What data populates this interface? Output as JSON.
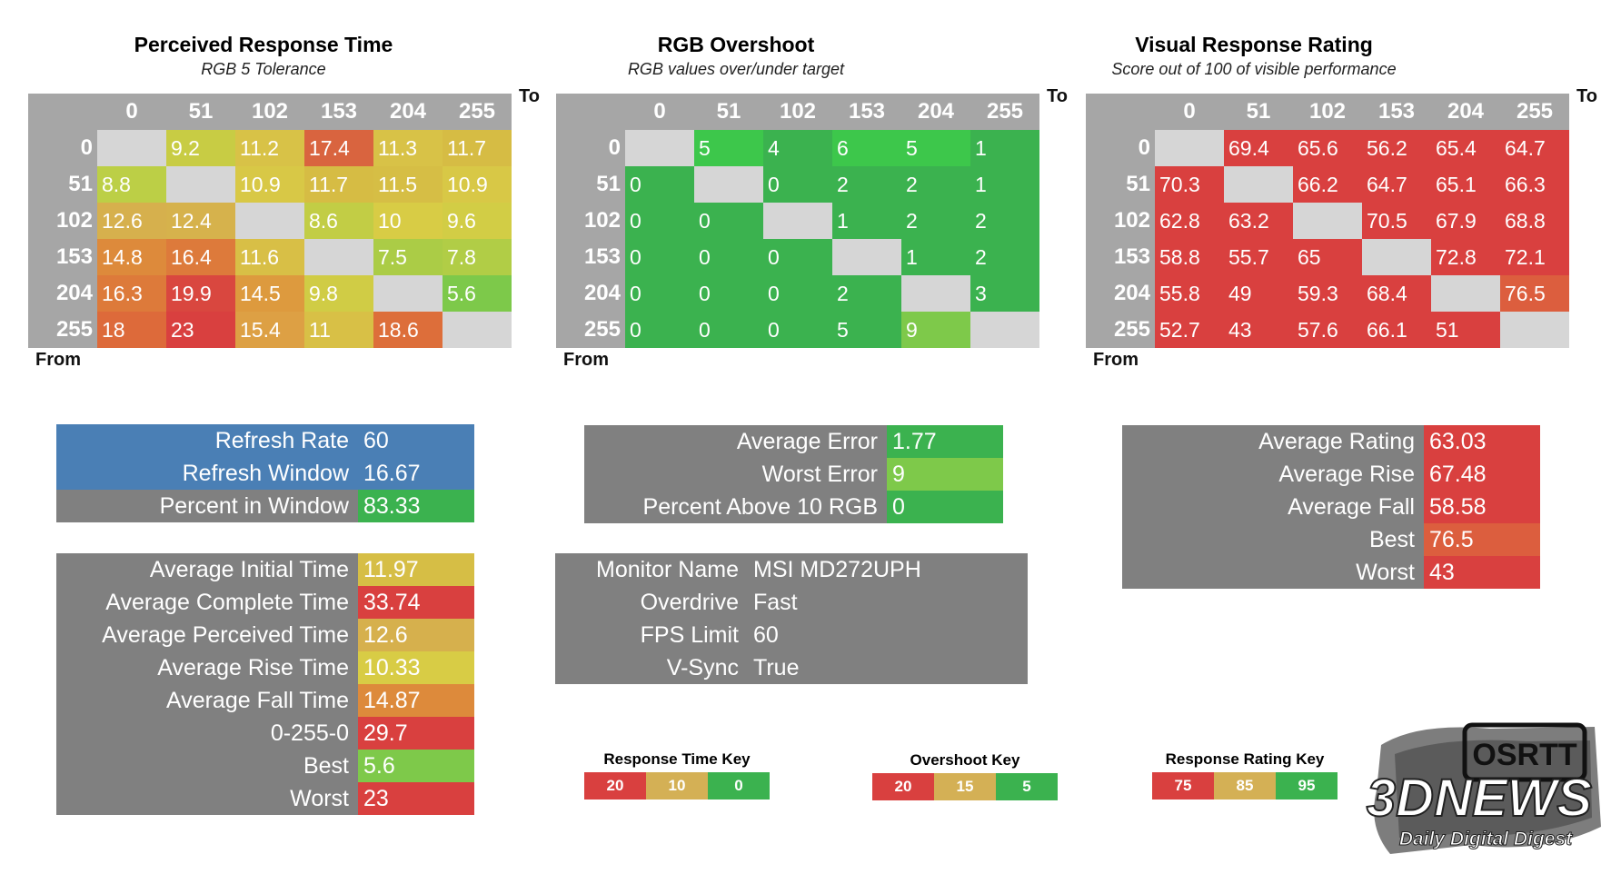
{
  "axis_labels": {
    "to": "To",
    "from": "From"
  },
  "colors": {
    "red": "#d9403f",
    "orange": "#dd7f3a",
    "amber": "#d4b055",
    "gold": "#d8b33e",
    "yellow": "#d9cf45",
    "lime": "#b6ce46",
    "lightgreen": "#7ec94a",
    "green": "#3bb24f",
    "brightgreen": "#3dc74b",
    "diag": "#d6d6d6",
    "header": "#a6a6a6",
    "label": "#808080",
    "blue": "#4a7fb5"
  },
  "chart_data": [
    {
      "type": "heatmap",
      "title": "Perceived Response Time",
      "subtitle": "RGB 5 Tolerance",
      "xlabel": "To",
      "ylabel": "From",
      "categories": [
        "0",
        "51",
        "102",
        "153",
        "204",
        "255"
      ],
      "values": [
        [
          null,
          "9.2",
          "11.2",
          "17.4",
          "11.3",
          "11.7"
        ],
        [
          "8.8",
          null,
          "10.9",
          "11.7",
          "11.5",
          "10.9"
        ],
        [
          "12.6",
          "12.4",
          null,
          "8.6",
          "10",
          "9.6"
        ],
        [
          "14.8",
          "16.4",
          "11.6",
          null,
          "7.5",
          "7.8"
        ],
        [
          "16.3",
          "19.9",
          "14.5",
          "9.8",
          null,
          "5.6"
        ],
        [
          "18",
          "23",
          "15.4",
          "11",
          "18.6",
          null
        ]
      ],
      "cell_colors": [
        [
          "#d6d6d6",
          "#c8cc44",
          "#d8c247",
          "#d9643f",
          "#d8c247",
          "#d6bc44"
        ],
        [
          "#bccf46",
          "#d6d6d6",
          "#d8c846",
          "#d6bc44",
          "#d6be45",
          "#d8c846"
        ],
        [
          "#d6b04d",
          "#d6b24c",
          "#d6d6d6",
          "#c2cd45",
          "#d8cc45",
          "#d2cd45"
        ],
        [
          "#dd8a3b",
          "#dd7a3b",
          "#d8bf46",
          "#d6d6d6",
          "#abcc46",
          "#b1cd46"
        ],
        [
          "#dd7a3a",
          "#d9473f",
          "#dd9a3e",
          "#d0cc45",
          "#d6d6d6",
          "#7dc94a"
        ],
        [
          "#dd6a3a",
          "#d9403f",
          "#dda044",
          "#d8c046",
          "#dd6e3a",
          "#d6d6d6"
        ]
      ]
    },
    {
      "type": "heatmap",
      "title": "RGB Overshoot",
      "subtitle": "RGB values over/under target",
      "xlabel": "To",
      "ylabel": "From",
      "categories": [
        "0",
        "51",
        "102",
        "153",
        "204",
        "255"
      ],
      "values": [
        [
          null,
          "5",
          "4",
          "6",
          "5",
          "1"
        ],
        [
          "0",
          null,
          "0",
          "2",
          "2",
          "1"
        ],
        [
          "0",
          "0",
          null,
          "1",
          "2",
          "2"
        ],
        [
          "0",
          "0",
          "0",
          null,
          "1",
          "2"
        ],
        [
          "0",
          "0",
          "0",
          "2",
          null,
          "3"
        ],
        [
          "0",
          "0",
          "0",
          "5",
          "9",
          null
        ]
      ],
      "cell_colors": [
        [
          "#d6d6d6",
          "#3dc74b",
          "#3bb24f",
          "#3dc74b",
          "#3dc74b",
          "#3bb24f"
        ],
        [
          "#3bb24f",
          "#d6d6d6",
          "#3bb24f",
          "#3bb24f",
          "#3bb24f",
          "#3bb24f"
        ],
        [
          "#3bb24f",
          "#3bb24f",
          "#d6d6d6",
          "#3bb24f",
          "#3bb24f",
          "#3bb24f"
        ],
        [
          "#3bb24f",
          "#3bb24f",
          "#3bb24f",
          "#d6d6d6",
          "#3bb24f",
          "#3bb24f"
        ],
        [
          "#3bb24f",
          "#3bb24f",
          "#3bb24f",
          "#3bb24f",
          "#d6d6d6",
          "#3bb24f"
        ],
        [
          "#3bb24f",
          "#3bb24f",
          "#3bb24f",
          "#3bb24f",
          "#7ec94a",
          "#d6d6d6"
        ]
      ]
    },
    {
      "type": "heatmap",
      "title": "Visual Response Rating",
      "subtitle": "Score out of 100 of visible performance",
      "xlabel": "To",
      "ylabel": "From",
      "categories": [
        "0",
        "51",
        "102",
        "153",
        "204",
        "255"
      ],
      "values": [
        [
          null,
          "69.4",
          "65.6",
          "56.2",
          "65.4",
          "64.7"
        ],
        [
          "70.3",
          null,
          "66.2",
          "64.7",
          "65.1",
          "66.3"
        ],
        [
          "62.8",
          "63.2",
          null,
          "70.5",
          "67.9",
          "68.8"
        ],
        [
          "58.8",
          "55.7",
          "65",
          null,
          "72.8",
          "72.1"
        ],
        [
          "55.8",
          "49",
          "59.3",
          "68.4",
          null,
          "76.5"
        ],
        [
          "52.7",
          "43",
          "57.6",
          "66.1",
          "51",
          null
        ]
      ],
      "cell_colors": [
        [
          "#d6d6d6",
          "#d9403f",
          "#d9403f",
          "#d9403f",
          "#d9403f",
          "#d9403f"
        ],
        [
          "#d9403f",
          "#d6d6d6",
          "#d9403f",
          "#d9403f",
          "#d9403f",
          "#d9403f"
        ],
        [
          "#d9403f",
          "#d9403f",
          "#d6d6d6",
          "#d9403f",
          "#d9403f",
          "#d9403f"
        ],
        [
          "#d9403f",
          "#d9403f",
          "#d9403f",
          "#d6d6d6",
          "#d9403f",
          "#d9403f"
        ],
        [
          "#d9403f",
          "#d9403f",
          "#d9403f",
          "#d9403f",
          "#d6d6d6",
          "#dc5e3e"
        ],
        [
          "#d9403f",
          "#d9403f",
          "#d9403f",
          "#d9403f",
          "#d9403f",
          "#d6d6d6"
        ]
      ]
    }
  ],
  "refresh_box": [
    {
      "label": "Refresh Rate",
      "value": "60",
      "label_color": "#4a7fb5",
      "value_color": "#4a7fb5"
    },
    {
      "label": "Refresh Window",
      "value": "16.67",
      "label_color": "#4a7fb5",
      "value_color": "#4a7fb5"
    },
    {
      "label": "Percent in Window",
      "value": "83.33",
      "label_color": "#808080",
      "value_color": "#3bb24f"
    }
  ],
  "times_box": [
    {
      "label": "Average Initial Time",
      "value": "11.97",
      "value_color": "#d6be45"
    },
    {
      "label": "Average Complete Time",
      "value": "33.74",
      "value_color": "#d9403f"
    },
    {
      "label": "Average Perceived Time",
      "value": "12.6",
      "value_color": "#d6b04d"
    },
    {
      "label": "Average Rise Time",
      "value": "10.33",
      "value_color": "#d8cc45"
    },
    {
      "label": "Average Fall Time",
      "value": "14.87",
      "value_color": "#dd8a3b"
    },
    {
      "label": "0-255-0",
      "value": "29.7",
      "value_color": "#d9403f"
    },
    {
      "label": "Best",
      "value": "5.6",
      "value_color": "#7ec94a"
    },
    {
      "label": "Worst",
      "value": "23",
      "value_color": "#d9403f"
    }
  ],
  "overshoot_box": [
    {
      "label": "Average Error",
      "value": "1.77",
      "value_color": "#3bb24f"
    },
    {
      "label": "Worst Error",
      "value": "9",
      "value_color": "#7ec94a"
    },
    {
      "label": "Percent Above 10 RGB",
      "value": "0",
      "value_color": "#3bb24f"
    }
  ],
  "monitor_box": [
    {
      "label": "Monitor Name",
      "value": "MSI MD272UPH"
    },
    {
      "label": "Overdrive",
      "value": "Fast"
    },
    {
      "label": "FPS Limit",
      "value": "60"
    },
    {
      "label": "V-Sync",
      "value": "True"
    }
  ],
  "rating_box": [
    {
      "label": "Average Rating",
      "value": "63.03",
      "value_color": "#d9403f"
    },
    {
      "label": "Average Rise",
      "value": "67.48",
      "value_color": "#d9403f"
    },
    {
      "label": "Average Fall",
      "value": "58.58",
      "value_color": "#d9403f"
    },
    {
      "label": "Best",
      "value": "76.5",
      "value_color": "#dc5e3e"
    },
    {
      "label": "Worst",
      "value": "43",
      "value_color": "#d9403f"
    }
  ],
  "keys": [
    {
      "title": "Response Time Key",
      "items": [
        {
          "text": "20",
          "color": "#d9403f"
        },
        {
          "text": "10",
          "color": "#d4b055"
        },
        {
          "text": "0",
          "color": "#3bb24f"
        }
      ]
    },
    {
      "title": "Overshoot Key",
      "items": [
        {
          "text": "20",
          "color": "#d9403f"
        },
        {
          "text": "15",
          "color": "#d4b055"
        },
        {
          "text": "5",
          "color": "#3bb24f"
        }
      ]
    },
    {
      "title": "Response Rating Key",
      "items": [
        {
          "text": "75",
          "color": "#d9403f"
        },
        {
          "text": "85",
          "color": "#d4b055"
        },
        {
          "text": "95",
          "color": "#3bb24f"
        }
      ]
    }
  ],
  "watermark": {
    "brand": "3DNEWS",
    "tagline": "Daily Digital Digest",
    "badge": "OSRTT"
  }
}
